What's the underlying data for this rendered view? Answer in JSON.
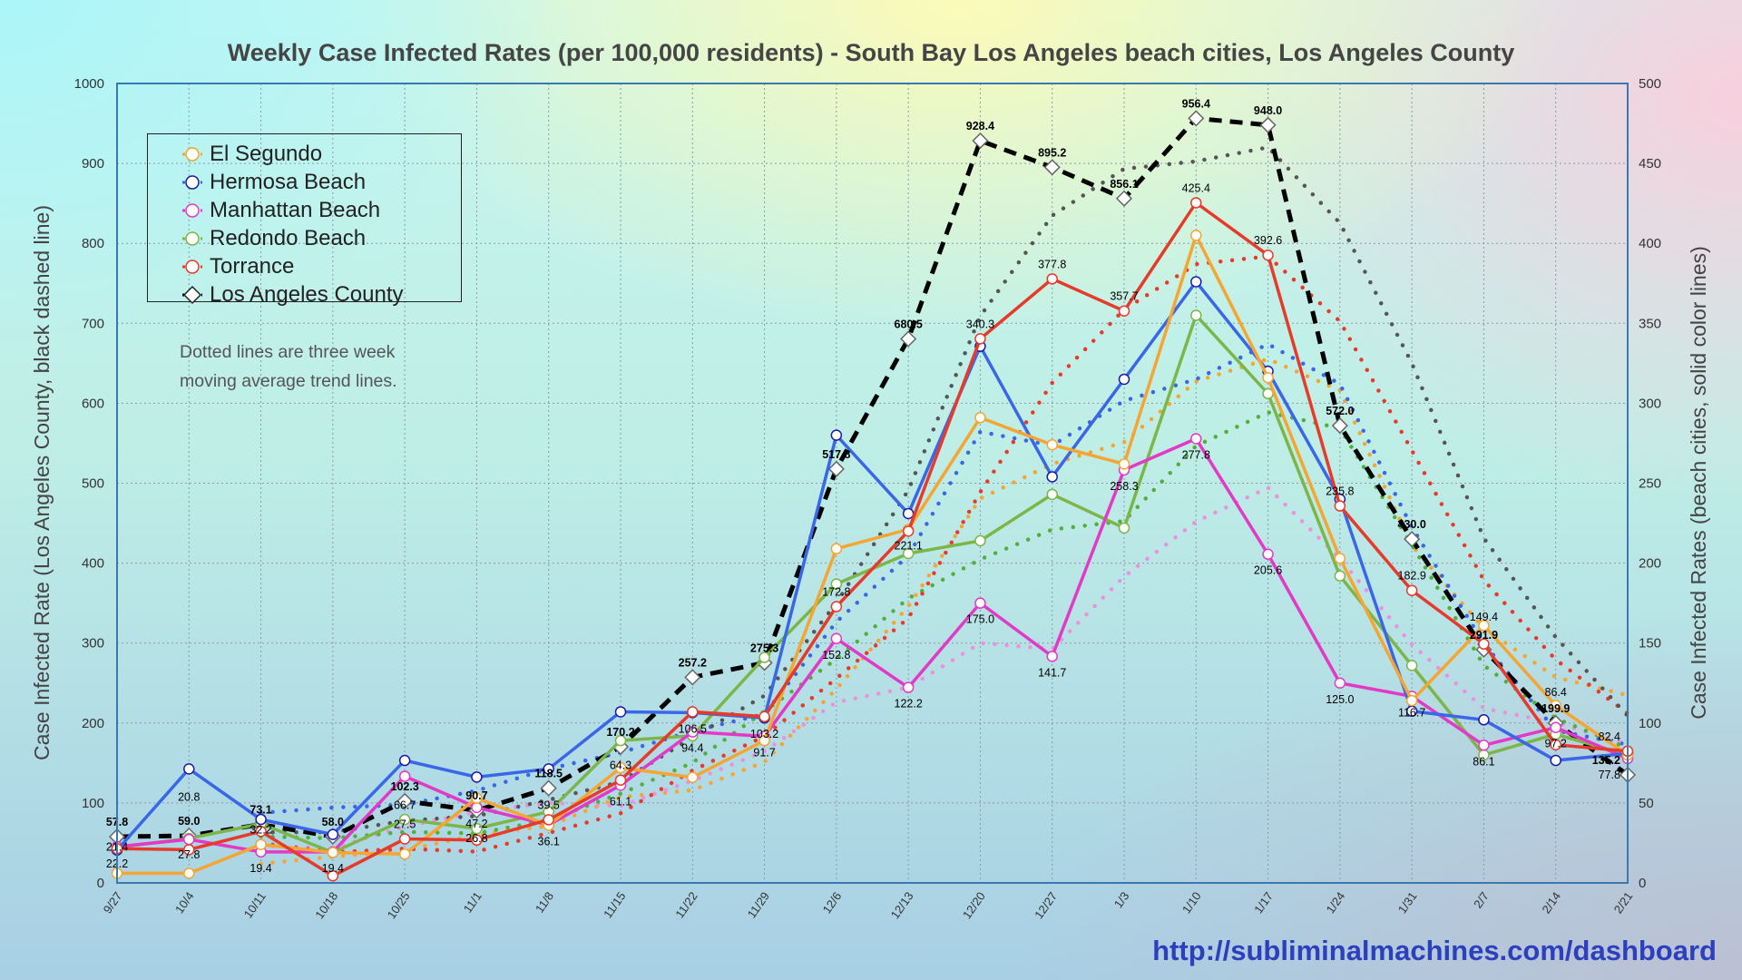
{
  "chart_data": {
    "type": "line",
    "title": "Weekly Case Infected Rates (per 100,000 residents) - South Bay Los Angeles beach cities, Los Angeles County",
    "ylabel_left": "Case Infected Rate (Los Angeles County, black dashed line)",
    "ylabel_right": "Case Infected Rates (beach cities, solid color lines)",
    "ylim_left": [
      0,
      1000
    ],
    "ylim_right": [
      0,
      500
    ],
    "yticks_left": [
      0,
      100,
      200,
      300,
      400,
      500,
      600,
      700,
      800,
      900,
      1000
    ],
    "yticks_right": [
      0,
      50,
      100,
      150,
      200,
      250,
      300,
      350,
      400,
      450,
      500
    ],
    "grid": true,
    "legend_position": "top-left",
    "note": [
      "Dotted lines are three week",
      "moving average trend lines."
    ],
    "categories": [
      "9/27",
      "10/4",
      "10/11",
      "10/18",
      "10/25",
      "11/1",
      "11/8",
      "11/15",
      "11/22",
      "11/29",
      "12/6",
      "12/13",
      "12/20",
      "12/27",
      "1/3",
      "1/10",
      "1/17",
      "1/24",
      "1/31",
      "2/7",
      "2/14",
      "2/21"
    ],
    "series": [
      {
        "name": "El Segundo",
        "axis": "right",
        "color": "#f5a531",
        "marker": "circle",
        "values": [
          6,
          6,
          24,
          19,
          18,
          53,
          36.1,
          72,
          66,
          89,
          209,
          221.1,
          291,
          274,
          262,
          405,
          316,
          203,
          114,
          161,
          111,
          80
        ],
        "labels": [
          null,
          null,
          null,
          null,
          null,
          null,
          "36.1",
          null,
          null,
          null,
          null,
          "221.1",
          null,
          null,
          null,
          null,
          null,
          null,
          null,
          null,
          null,
          null
        ]
      },
      {
        "name": "Hermosa Beach",
        "axis": "right",
        "color": "#3a66e8",
        "marker": "circle",
        "values": [
          20.5,
          71.3,
          39.7,
          30.3,
          76.6,
          66.2,
          71.3,
          107,
          106.5,
          103.2,
          280,
          231,
          335.6,
          254,
          315,
          376,
          320,
          240,
          107.4,
          102,
          76.6,
          81
        ],
        "labels": [
          null,
          null,
          null,
          null,
          null,
          null,
          null,
          null,
          "106.5",
          "103.2",
          null,
          null,
          null,
          null,
          null,
          null,
          null,
          null,
          null,
          null,
          null,
          null
        ]
      },
      {
        "name": "Manhattan Beach",
        "axis": "right",
        "color": "#e23ac6",
        "marker": "circle",
        "values": [
          22.7,
          27.2,
          19.4,
          19.4,
          66.7,
          47.2,
          36.3,
          61.1,
          94.4,
          91.7,
          152.8,
          122.2,
          175.0,
          141.7,
          258.3,
          277.8,
          205.6,
          125.0,
          116.7,
          86.1,
          97.2,
          77.8
        ],
        "labels": [
          null,
          null,
          "19.4",
          "19.4",
          "66.7",
          "47.2",
          null,
          "61.1",
          "94.4",
          "91.7",
          "152.8",
          "122.2",
          "175.0",
          "141.7",
          "258.3",
          "277.8",
          "205.6",
          "125.0",
          "116.7",
          "86.1",
          "97.2",
          "77.8"
        ]
      },
      {
        "name": "Redondo Beach",
        "axis": "right",
        "color": "#7cb648",
        "marker": "circle",
        "values": [
          22.2,
          27.8,
          37,
          19,
          39.7,
          34,
          44.5,
          89,
          92,
          141,
          187,
          206,
          214,
          243,
          222,
          355,
          306,
          192,
          136,
          80,
          93,
          80
        ],
        "labels": [
          "22.2",
          "27.8",
          null,
          null,
          null,
          null,
          null,
          null,
          null,
          null,
          null,
          null,
          null,
          null,
          null,
          null,
          null,
          null,
          null,
          null,
          null,
          null
        ]
      },
      {
        "name": "Torrance",
        "axis": "right",
        "color": "#e63a2b",
        "marker": "circle",
        "values": [
          21.4,
          20.8,
          32.2,
          4.4,
          27.5,
          26.8,
          39.5,
          64.3,
          107,
          104,
          172.8,
          220,
          340.3,
          377.8,
          357.7,
          425.4,
          392.6,
          235.8,
          182.9,
          149.4,
          86.4,
          82.4
        ],
        "labels": [
          "21.4",
          "20.8",
          "32.2",
          null,
          "27.5",
          "26.8",
          "39.5",
          "64.3",
          null,
          null,
          "172.8",
          null,
          "340.3",
          "377.8",
          "357.7",
          "425.4",
          "392.6",
          "235.8",
          "182.9",
          "149.4",
          "86.4",
          "82.4"
        ]
      },
      {
        "name": "Los Angeles County",
        "axis": "left",
        "color": "#000000",
        "marker": "diamond",
        "values": [
          57.8,
          59.0,
          73.1,
          58.0,
          102.3,
          90.7,
          118.5,
          170.2,
          257.2,
          275.3,
          517.8,
          680.5,
          928.4,
          895.2,
          856.1,
          956.4,
          948.0,
          572.0,
          430.0,
          291.9,
          199.9,
          135.2
        ],
        "labels": [
          "57.8",
          "59.0",
          "73.1",
          "58.0",
          "102.3",
          "90.7",
          "118.5",
          "170.2",
          "257.2",
          "275.3",
          "517.8",
          "680.5",
          "928.4",
          "895.2",
          "856.1",
          "956.4",
          "948.0",
          "572.0",
          "430.0",
          "291.9",
          "199.9",
          "135.2"
        ]
      }
    ],
    "trend_colors": {
      "El Segundo": "#f5a531",
      "Hermosa Beach": "#3a66e8",
      "Manhattan Beach": "#ee8fe0",
      "Redondo Beach": "#4fb03a",
      "Torrance": "#e63a2b",
      "Los Angeles County": "#555555"
    }
  },
  "footer": {
    "url": "http://subliminalmachines.com/dashboard"
  }
}
